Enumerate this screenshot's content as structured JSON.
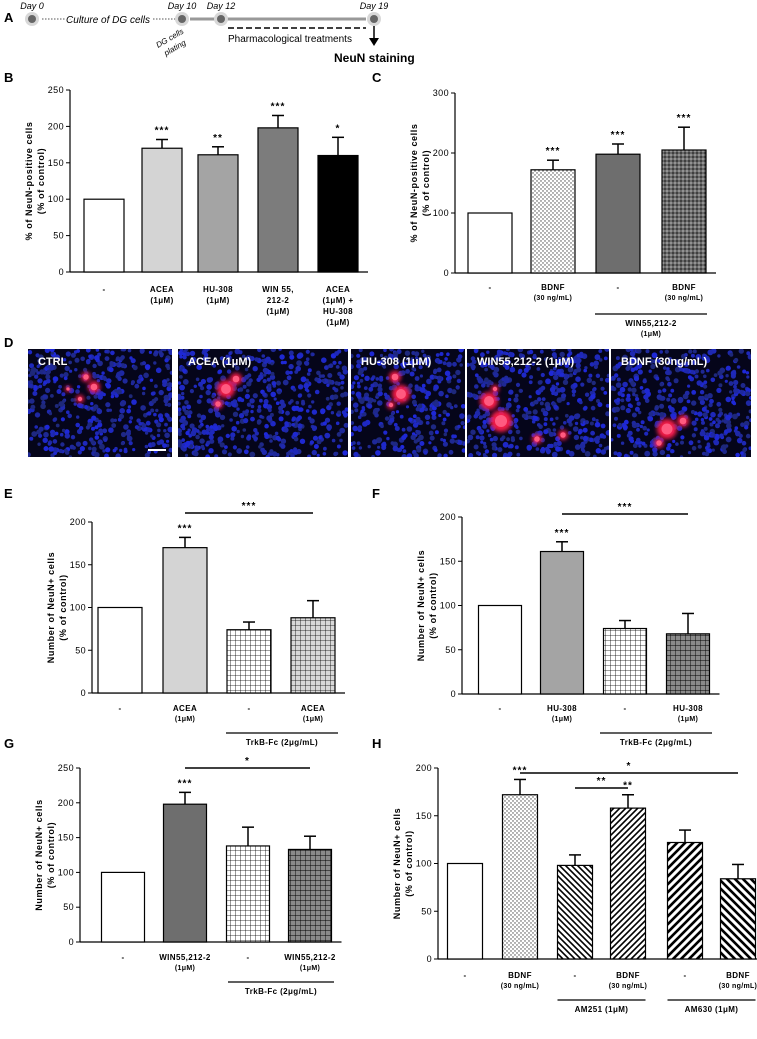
{
  "figure": {
    "panel_labels": [
      "A",
      "B",
      "C",
      "D",
      "E",
      "F",
      "G",
      "H"
    ]
  },
  "timeline": {
    "days": [
      "Day 0",
      "Day 10",
      "Day 12",
      "Day 19"
    ],
    "culture_label": "Culture of DG cells",
    "plating_label_1": "DG cells",
    "plating_label_2": "plating",
    "treatment_label": "Pharmacological treatments",
    "staining_label": "NeuN staining"
  },
  "micrographs": {
    "labels": [
      "CTRL",
      "ACEA (1μM)",
      "HU-308 (1μM)",
      "WIN55,212-2 (1μM)",
      "BDNF (30ng/mL)"
    ]
  },
  "chart_data": [
    {
      "id": "B",
      "type": "bar",
      "ylabel_1": "% of NeuN-positive cells",
      "ylabel_2": "(% of control)",
      "ylim": [
        0,
        250
      ],
      "yticks": [
        0,
        50,
        100,
        150,
        200,
        250
      ],
      "categories": [
        {
          "line1": "-",
          "line2": "",
          "line3": "",
          "line4": ""
        },
        {
          "line1": "ACEA",
          "line2": "(1μM)",
          "line3": "",
          "line4": ""
        },
        {
          "line1": "HU-308",
          "line2": "(1μM)",
          "line3": "",
          "line4": ""
        },
        {
          "line1": "WIN 55,",
          "line2": "212-2",
          "line3": "(1μM)",
          "line4": ""
        },
        {
          "line1": "ACEA",
          "line2": "(1μM) +",
          "line3": "HU-308",
          "line4": "(1μM)"
        }
      ],
      "values": [
        100,
        170,
        161,
        198,
        160
      ],
      "errors": [
        0,
        12,
        11,
        17,
        25
      ],
      "significance": [
        "",
        "***",
        "**",
        "***",
        "*"
      ],
      "colors": [
        "#ffffff",
        "#d4d4d4",
        "#a4a4a4",
        "#7c7c7c",
        "#000000"
      ],
      "brackets": []
    },
    {
      "id": "C",
      "type": "bar",
      "ylabel_1": "% of NeuN-positive cells",
      "ylabel_2": "(% of control)",
      "ylim": [
        0,
        300
      ],
      "yticks": [
        0,
        100,
        200,
        300
      ],
      "categories": [
        {
          "line1": "-",
          "line2": ""
        },
        {
          "line1": "BDNF",
          "line2": "(30 ng/mL)"
        },
        {
          "line1": "-",
          "line2": ""
        },
        {
          "line1": "BDNF",
          "line2": "(30 ng/mL)"
        }
      ],
      "values": [
        100,
        172,
        198,
        205
      ],
      "errors": [
        0,
        16,
        17,
        38
      ],
      "significance": [
        "",
        "***",
        "***",
        "***"
      ],
      "patterns": [
        "white",
        "dots",
        "darkgray",
        "crosshatch"
      ],
      "group_line": {
        "text": "WIN55,212-2",
        "sub": "(1μM)"
      },
      "brackets": []
    },
    {
      "id": "E",
      "type": "bar",
      "ylabel_1": "Number of NeuN+ cells",
      "ylabel_2": "(% of control)",
      "ylim": [
        0,
        200
      ],
      "yticks": [
        0,
        50,
        100,
        150,
        200
      ],
      "categories": [
        {
          "line1": "-",
          "line2": ""
        },
        {
          "line1": "ACEA",
          "line2": "(1μM)"
        },
        {
          "line1": "-",
          "line2": ""
        },
        {
          "line1": "ACEA",
          "line2": "(1μM)"
        }
      ],
      "values": [
        100,
        170,
        74,
        88
      ],
      "errors": [
        0,
        12,
        9,
        20
      ],
      "significance": [
        "",
        "***",
        "",
        ""
      ],
      "patterns": [
        "white",
        "lightgray",
        "grid",
        "grid-light"
      ],
      "group_line": {
        "text": "TrkB-Fc (2μg/mL)",
        "sub": ""
      },
      "brackets": [
        {
          "from": 1,
          "to": 3,
          "label": "***"
        }
      ]
    },
    {
      "id": "F",
      "type": "bar",
      "ylabel_1": "Number of NeuN+ cells",
      "ylabel_2": "(% of control)",
      "ylim": [
        0,
        200
      ],
      "yticks": [
        0,
        50,
        100,
        150,
        200
      ],
      "categories": [
        {
          "line1": "-",
          "line2": ""
        },
        {
          "line1": "HU-308",
          "line2": "(1μM)"
        },
        {
          "line1": "-",
          "line2": ""
        },
        {
          "line1": "HU-308",
          "line2": "(1μM)"
        }
      ],
      "values": [
        100,
        161,
        74,
        68
      ],
      "errors": [
        0,
        11,
        9,
        23
      ],
      "significance": [
        "",
        "***",
        "",
        ""
      ],
      "patterns": [
        "white",
        "midgray",
        "grid",
        "grid-dark"
      ],
      "group_line": {
        "text": "TrkB-Fc (2μg/mL)",
        "sub": ""
      },
      "brackets": [
        {
          "from": 1,
          "to": 3,
          "label": "***"
        }
      ]
    },
    {
      "id": "G",
      "type": "bar",
      "ylabel_1": "Number of NeuN+ cells",
      "ylabel_2": "(% of control)",
      "ylim": [
        0,
        250
      ],
      "yticks": [
        0,
        50,
        100,
        150,
        200,
        250
      ],
      "categories": [
        {
          "line1": "-",
          "line2": ""
        },
        {
          "line1": "WIN55,212-2",
          "line2": "(1μM)"
        },
        {
          "line1": "-",
          "line2": ""
        },
        {
          "line1": "WIN55,212-2",
          "line2": "(1μM)"
        }
      ],
      "values": [
        100,
        198,
        138,
        133
      ],
      "errors": [
        0,
        17,
        27,
        19
      ],
      "significance": [
        "",
        "***",
        "",
        ""
      ],
      "patterns": [
        "white",
        "darkgray",
        "grid",
        "grid-dark"
      ],
      "group_line": {
        "text": "TrkB-Fc (2μg/mL)",
        "sub": ""
      },
      "brackets": [
        {
          "from": 1,
          "to": 3,
          "label": "*"
        }
      ]
    },
    {
      "id": "H",
      "type": "bar",
      "ylabel_1": "Number of NeuN+ cells",
      "ylabel_2": "(% of control)",
      "ylim": [
        0,
        200
      ],
      "yticks": [
        0,
        50,
        100,
        150,
        200
      ],
      "categories": [
        {
          "line1": "-",
          "line2": ""
        },
        {
          "line1": "BDNF",
          "line2": "(30 ng/mL)"
        },
        {
          "line1": "-",
          "line2": ""
        },
        {
          "line1": "BDNF",
          "line2": "(30 ng/mL)"
        },
        {
          "line1": "-",
          "line2": ""
        },
        {
          "line1": "BDNF",
          "line2": "(30 ng/mL)"
        }
      ],
      "values": [
        100,
        172,
        98,
        158,
        122,
        84
      ],
      "errors": [
        0,
        16,
        11,
        14,
        13,
        15
      ],
      "significance": [
        "",
        "***",
        "",
        "**",
        "",
        ""
      ],
      "patterns": [
        "white",
        "dots",
        "diag-back",
        "diag-fwd",
        "diag-fwd-wide",
        "diag-back-wide"
      ],
      "group_lines": [
        {
          "from": 2,
          "to": 3,
          "text": "AM251 (1μM)"
        },
        {
          "from": 4,
          "to": 5,
          "text": "AM630 (1μM)"
        }
      ],
      "brackets": [
        {
          "from": 2,
          "to": 3,
          "label": "**"
        },
        {
          "from": 1,
          "to": 5,
          "label": "*"
        }
      ]
    }
  ]
}
